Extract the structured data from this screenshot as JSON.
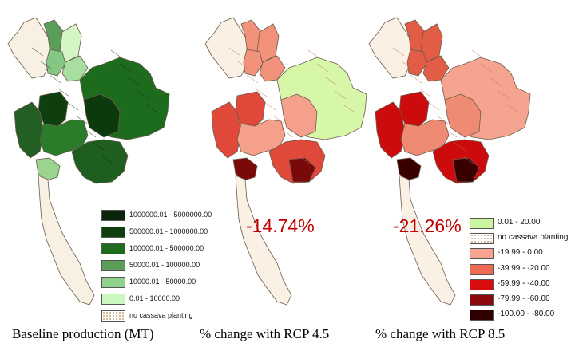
{
  "maps": [
    {
      "id": "baseline",
      "caption": "Baseline production (MT)",
      "colors": {
        "north_w": "#f8f0e2",
        "north_e": [
          "#5a9e5a",
          "#84c684",
          "#a8dfa0",
          "#d4f5c4"
        ],
        "northeast": "#1d6b1d",
        "northeast_dark": "#0c3a0c",
        "central": "#2a7b2a",
        "central_dark": "#0f3f0f",
        "east": "#1e5e1e",
        "west": "#235f23",
        "south": "#f8f0e2",
        "lower": "#9ad48e"
      }
    },
    {
      "id": "rcp45",
      "caption": "% change with RCP 4.5",
      "total_change": "-14.74%",
      "colors": {
        "north_w": "#faf0e4",
        "north_e": "#f2927a",
        "northeast": "#d6f7a8",
        "central": "#f4a08a",
        "accent": "#e0493a",
        "dark": "#7a0a0a",
        "south": "#faf0e4"
      }
    },
    {
      "id": "rcp85",
      "caption": "% change with RCP 8.5",
      "total_change": "-21.26%",
      "colors": {
        "north_w": "#faf0e4",
        "north_e": "#e35c45",
        "northeast": "#f5a58f",
        "central": "#ef8a74",
        "accent": "#cc0c0c",
        "dark": "#3a0000",
        "south": "#faf0e4"
      }
    }
  ],
  "legend_baseline": [
    {
      "label": "1000000.01 - 5000000.00",
      "color": "#0a240a"
    },
    {
      "label": "500000.01 - 1000000.00",
      "color": "#0f3f0f"
    },
    {
      "label": "100000.01 - 500000.00",
      "color": "#1e6b1e"
    },
    {
      "label": "50000.01 - 100000.00",
      "color": "#5a9e5a"
    },
    {
      "label": "10000.01 - 50000.00",
      "color": "#8fd38a"
    },
    {
      "label": "0.01 - 10000.00",
      "color": "#ccf7bd"
    },
    {
      "label": "no cassava planting",
      "color": "dots"
    }
  ],
  "legend_change": [
    {
      "label": "0.01 - 20.00",
      "color": "#ccf59f"
    },
    {
      "label": "no cassava planting",
      "color": "dots"
    },
    {
      "label": "-19.99 - 0.00",
      "color": "#f9a48e"
    },
    {
      "label": "-39.99 - -20.00",
      "color": "#ee6a52"
    },
    {
      "label": "-59.99 - -40.00",
      "color": "#d80d0d"
    },
    {
      "label": "-79.99 - -60.00",
      "color": "#8c0a0a"
    },
    {
      "label": "-100.00 - -80.00",
      "color": "#2e0000"
    }
  ]
}
